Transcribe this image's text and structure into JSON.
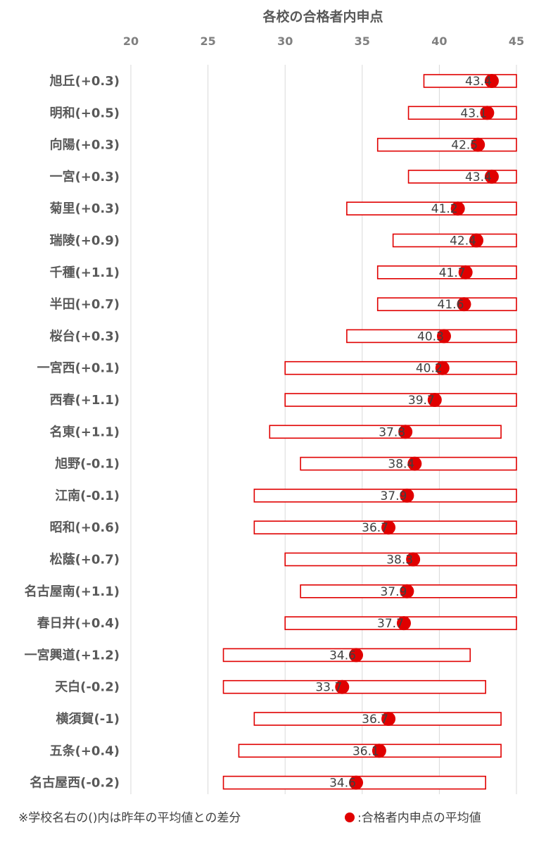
{
  "chart_data": {
    "type": "bar",
    "title": "各校の合格者内申点",
    "xlim": [
      20,
      45
    ],
    "ticks": [
      20,
      25,
      30,
      35,
      40,
      45
    ],
    "grid": true,
    "categories": [
      "旭丘(+0.3)",
      "明和(+0.5)",
      "向陽(+0.3)",
      "一宮(+0.3)",
      "菊里(+0.3)",
      "瑞陵(+0.9)",
      "千種(+1.1)",
      "半田(+0.7)",
      "桜台(+0.3)",
      "一宮西(+0.1)",
      "西春(+1.1)",
      "名東(+1.1)",
      "旭野(-0.1)",
      "江南(-0.1)",
      "昭和(+0.6)",
      "松蔭(+0.7)",
      "名古屋南(+1.1)",
      "春日井(+0.4)",
      "一宮興道(+1.2)",
      "天白(-0.2)",
      "横須賀(-1)",
      "五条(+0.4)",
      "名古屋西(-0.2)"
    ],
    "series": [
      {
        "type": "range",
        "min": [
          39,
          38,
          36,
          38,
          34,
          37,
          36,
          36,
          34,
          30,
          30,
          29,
          31,
          28,
          28,
          30,
          31,
          30,
          26,
          26,
          28,
          27,
          26
        ],
        "max": [
          45,
          45,
          45,
          45,
          45,
          45,
          45,
          45,
          45,
          45,
          45,
          44,
          45,
          45,
          45,
          45,
          45,
          45,
          42,
          43,
          44,
          44,
          43
        ]
      },
      {
        "name": "合格者内申点の平均値",
        "type": "point",
        "values": [
          43.4,
          43.1,
          42.5,
          43.4,
          41.2,
          42.4,
          41.7,
          41.6,
          40.3,
          40.2,
          39.7,
          37.8,
          38.4,
          37.9,
          36.7,
          38.3,
          37.9,
          37.7,
          34.6,
          33.7,
          36.7,
          36.1,
          34.6
        ]
      }
    ],
    "footnote": "※学校名右の()内は昨年の平均値との差分",
    "legend_label": ":合格者内申点の平均値",
    "colors": {
      "bar_edge": "#e00000",
      "point": "#e00000",
      "grid": "#d9d9d9"
    }
  }
}
